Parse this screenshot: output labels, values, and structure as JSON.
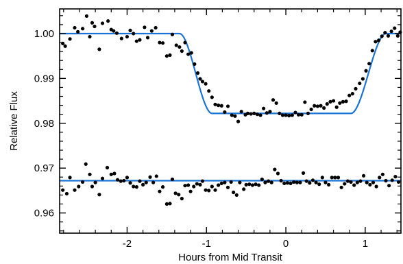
{
  "colors": {
    "model_line": "#1a73d6",
    "points": "#000000",
    "axes": "#000000",
    "background": "#ffffff"
  },
  "chart_data": {
    "type": "scatter",
    "title": "",
    "xlabel": "Hours from Mid Transit",
    "ylabel": "Relative Flux",
    "xlim": [
      -2.85,
      1.45
    ],
    "ylim": [
      0.9555,
      1.0055
    ],
    "grid": false,
    "legend": "none",
    "x_ticks": [
      -2,
      -1,
      0,
      1
    ],
    "x_tick_labels": [
      "-2",
      "-1",
      "0",
      "1"
    ],
    "y_ticks": [
      0.96,
      0.97,
      0.98,
      0.99,
      1.0
    ],
    "y_tick_labels": [
      "0.96",
      "0.97",
      "0.98",
      "0.99",
      "1.00"
    ],
    "series": [
      {
        "role": "transit light curve (observed)",
        "kind": "points",
        "points": [
          [
            -2.81,
            0.9978
          ],
          [
            -2.78,
            0.9972
          ],
          [
            -2.72,
            0.9988
          ],
          [
            -2.66,
            1.0013
          ],
          [
            -2.62,
            1.0004
          ],
          [
            -2.56,
            1.0011
          ],
          [
            -2.51,
            1.0039
          ],
          [
            -2.47,
            0.9993
          ],
          [
            -2.44,
            1.0024
          ],
          [
            -2.41,
            1.0016
          ],
          [
            -2.35,
            0.9965
          ],
          [
            -2.31,
            1.0023
          ],
          [
            -2.24,
            1.0028
          ],
          [
            -2.2,
            1.0009
          ],
          [
            -2.17,
            1.0006
          ],
          [
            -2.13,
            1.0001
          ],
          [
            -2.07,
            0.9989
          ],
          [
            -2.0,
            0.9993
          ],
          [
            -1.96,
            1.0007
          ],
          [
            -1.92,
            1.0
          ],
          [
            -1.88,
            0.9983
          ],
          [
            -1.84,
            0.9986
          ],
          [
            -1.78,
            1.0014
          ],
          [
            -1.74,
            0.9991
          ],
          [
            -1.69,
            1.0006
          ],
          [
            -1.64,
            1.0013
          ],
          [
            -1.59,
            0.998
          ],
          [
            -1.55,
            0.9979
          ],
          [
            -1.5,
            0.995
          ],
          [
            -1.46,
            0.9952
          ],
          [
            -1.43,
            0.9998
          ],
          [
            -1.38,
            0.9974
          ],
          [
            -1.34,
            0.997
          ],
          [
            -1.31,
            0.9961
          ],
          [
            -1.27,
            0.998
          ],
          [
            -1.23,
            0.9954
          ],
          [
            -1.19,
            0.9957
          ],
          [
            -1.15,
            0.9932
          ],
          [
            -1.11,
            0.9912
          ],
          [
            -1.08,
            0.9899
          ],
          [
            -1.05,
            0.9893
          ],
          [
            -1.01,
            0.9888
          ],
          [
            -0.97,
            0.9872
          ],
          [
            -0.93,
            0.9858
          ],
          [
            -0.89,
            0.9842
          ],
          [
            -0.85,
            0.984
          ],
          [
            -0.81,
            0.9839
          ],
          [
            -0.77,
            0.9825
          ],
          [
            -0.73,
            0.9838
          ],
          [
            -0.68,
            0.9818
          ],
          [
            -0.64,
            0.9816
          ],
          [
            -0.6,
            0.9804
          ],
          [
            -0.56,
            0.9826
          ],
          [
            -0.51,
            0.9819
          ],
          [
            -0.48,
            0.9822
          ],
          [
            -0.44,
            0.9821
          ],
          [
            -0.4,
            0.9822
          ],
          [
            -0.36,
            0.982
          ],
          [
            -0.32,
            0.9818
          ],
          [
            -0.28,
            0.9833
          ],
          [
            -0.24,
            0.9823
          ],
          [
            -0.2,
            0.9826
          ],
          [
            -0.16,
            0.9852
          ],
          [
            -0.12,
            0.9845
          ],
          [
            -0.08,
            0.9822
          ],
          [
            -0.04,
            0.9818
          ],
          [
            0.0,
            0.9818
          ],
          [
            0.04,
            0.9817
          ],
          [
            0.08,
            0.9818
          ],
          [
            0.12,
            0.9824
          ],
          [
            0.16,
            0.9819
          ],
          [
            0.2,
            0.9819
          ],
          [
            0.24,
            0.9847
          ],
          [
            0.28,
            0.9822
          ],
          [
            0.32,
            0.9831
          ],
          [
            0.36,
            0.9839
          ],
          [
            0.4,
            0.9838
          ],
          [
            0.44,
            0.9839
          ],
          [
            0.48,
            0.9834
          ],
          [
            0.52,
            0.9843
          ],
          [
            0.56,
            0.9848
          ],
          [
            0.6,
            0.985
          ],
          [
            0.64,
            0.9836
          ],
          [
            0.68,
            0.9845
          ],
          [
            0.72,
            0.9848
          ],
          [
            0.76,
            0.9849
          ],
          [
            0.8,
            0.9862
          ],
          [
            0.84,
            0.9866
          ],
          [
            0.88,
            0.9877
          ],
          [
            0.93,
            0.9889
          ],
          [
            0.97,
            0.9899
          ],
          [
            1.01,
            0.9917
          ],
          [
            1.05,
            0.9933
          ],
          [
            1.09,
            0.9962
          ],
          [
            1.13,
            0.9982
          ],
          [
            1.17,
            0.9985
          ],
          [
            1.21,
            0.9994
          ],
          [
            1.25,
            1.0002
          ],
          [
            1.29,
            0.9995
          ],
          [
            1.33,
            1.0005
          ],
          [
            1.37,
            1.0012
          ],
          [
            1.41,
            0.9995
          ],
          [
            1.44,
            1.0003
          ]
        ]
      },
      {
        "role": "transit model",
        "kind": "line",
        "model": {
          "baseline": 1.0,
          "depth": 0.0178,
          "ingress_start": -1.34,
          "ingress_end": -0.93,
          "egress_start": 0.82,
          "egress_end": 1.26
        }
      },
      {
        "role": "residuals (offset)",
        "kind": "points",
        "points": [
          [
            -2.81,
            0.9651
          ],
          [
            -2.76,
            0.9643
          ],
          [
            -2.72,
            0.9679
          ],
          [
            -2.66,
            0.9651
          ],
          [
            -2.61,
            0.9659
          ],
          [
            -2.56,
            0.9669
          ],
          [
            -2.52,
            0.9709
          ],
          [
            -2.47,
            0.9686
          ],
          [
            -2.44,
            0.9659
          ],
          [
            -2.4,
            0.9668
          ],
          [
            -2.35,
            0.9641
          ],
          [
            -2.31,
            0.9677
          ],
          [
            -2.25,
            0.9701
          ],
          [
            -2.2,
            0.9686
          ],
          [
            -2.16,
            0.9688
          ],
          [
            -2.12,
            0.9674
          ],
          [
            -2.08,
            0.9671
          ],
          [
            -2.04,
            0.9672
          ],
          [
            -2.0,
            0.9679
          ],
          [
            -1.96,
            0.9667
          ],
          [
            -1.92,
            0.9659
          ],
          [
            -1.88,
            0.9658
          ],
          [
            -1.84,
            0.9671
          ],
          [
            -1.8,
            0.9663
          ],
          [
            -1.76,
            0.9668
          ],
          [
            -1.71,
            0.968
          ],
          [
            -1.67,
            0.9668
          ],
          [
            -1.63,
            0.9682
          ],
          [
            -1.59,
            0.9648
          ],
          [
            -1.55,
            0.9658
          ],
          [
            -1.5,
            0.962
          ],
          [
            -1.46,
            0.9621
          ],
          [
            -1.43,
            0.9675
          ],
          [
            -1.39,
            0.9644
          ],
          [
            -1.35,
            0.9641
          ],
          [
            -1.31,
            0.9632
          ],
          [
            -1.27,
            0.9661
          ],
          [
            -1.23,
            0.9662
          ],
          [
            -1.2,
            0.9648
          ],
          [
            -1.16,
            0.9659
          ],
          [
            -1.12,
            0.9665
          ],
          [
            -1.08,
            0.9663
          ],
          [
            -1.05,
            0.9671
          ],
          [
            -1.01,
            0.9651
          ],
          [
            -0.97,
            0.965
          ],
          [
            -0.93,
            0.9659
          ],
          [
            -0.89,
            0.9651
          ],
          [
            -0.85,
            0.9662
          ],
          [
            -0.81,
            0.9666
          ],
          [
            -0.77,
            0.9668
          ],
          [
            -0.73,
            0.9657
          ],
          [
            -0.69,
            0.9669
          ],
          [
            -0.66,
            0.9646
          ],
          [
            -0.62,
            0.964
          ],
          [
            -0.58,
            0.9668
          ],
          [
            -0.53,
            0.9653
          ],
          [
            -0.5,
            0.9663
          ],
          [
            -0.46,
            0.9664
          ],
          [
            -0.42,
            0.9662
          ],
          [
            -0.38,
            0.9664
          ],
          [
            -0.34,
            0.9662
          ],
          [
            -0.3,
            0.9675
          ],
          [
            -0.26,
            0.9668
          ],
          [
            -0.22,
            0.9671
          ],
          [
            -0.18,
            0.9668
          ],
          [
            -0.14,
            0.9697
          ],
          [
            -0.1,
            0.9688
          ],
          [
            -0.06,
            0.9672
          ],
          [
            -0.02,
            0.9666
          ],
          [
            0.02,
            0.9667
          ],
          [
            0.06,
            0.9666
          ],
          [
            0.1,
            0.9669
          ],
          [
            0.14,
            0.9668
          ],
          [
            0.18,
            0.9668
          ],
          [
            0.22,
            0.9689
          ],
          [
            0.26,
            0.9671
          ],
          [
            0.3,
            0.9667
          ],
          [
            0.34,
            0.9673
          ],
          [
            0.38,
            0.9668
          ],
          [
            0.42,
            0.9664
          ],
          [
            0.46,
            0.9679
          ],
          [
            0.5,
            0.9668
          ],
          [
            0.54,
            0.9663
          ],
          [
            0.58,
            0.9679
          ],
          [
            0.62,
            0.9679
          ],
          [
            0.66,
            0.9679
          ],
          [
            0.7,
            0.9657
          ],
          [
            0.74,
            0.9665
          ],
          [
            0.78,
            0.9671
          ],
          [
            0.82,
            0.9669
          ],
          [
            0.86,
            0.9662
          ],
          [
            0.9,
            0.9668
          ],
          [
            0.94,
            0.9671
          ],
          [
            0.98,
            0.9683
          ],
          [
            1.02,
            0.9668
          ],
          [
            1.06,
            0.9663
          ],
          [
            1.1,
            0.9668
          ],
          [
            1.14,
            0.9659
          ],
          [
            1.18,
            0.9679
          ],
          [
            1.22,
            0.9686
          ],
          [
            1.26,
            0.9672
          ],
          [
            1.3,
            0.9661
          ],
          [
            1.34,
            0.9673
          ],
          [
            1.38,
            0.9681
          ],
          [
            1.42,
            0.9669
          ]
        ]
      },
      {
        "role": "residuals zero line",
        "kind": "hline",
        "y": 0.9672
      }
    ]
  }
}
